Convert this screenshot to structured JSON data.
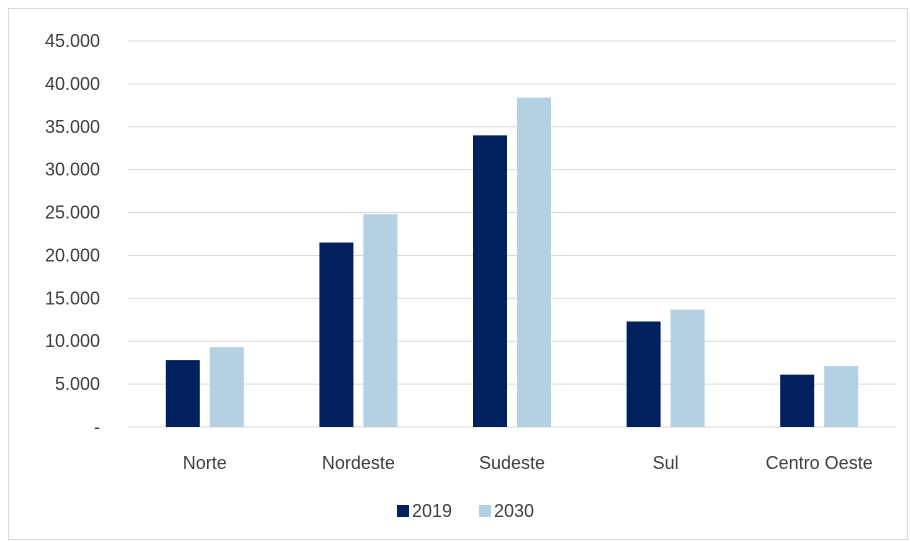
{
  "chart_data": {
    "type": "bar",
    "categories": [
      "Norte",
      "Nordeste",
      "Sudeste",
      "Sul",
      "Centro Oeste"
    ],
    "series": [
      {
        "name": "2019",
        "color": "#002060",
        "values": [
          7800,
          21500,
          34000,
          12300,
          6100
        ]
      },
      {
        "name": "2030",
        "color": "#b4d0e3",
        "values": [
          9300,
          24800,
          38400,
          13700,
          7100
        ]
      }
    ],
    "title": "",
    "xlabel": "",
    "ylabel": "",
    "ylim": [
      0,
      45000
    ],
    "yticks": [
      0,
      5000,
      10000,
      15000,
      20000,
      25000,
      30000,
      35000,
      40000,
      45000
    ],
    "ytick_labels": [
      "-",
      "5.000",
      "10.000",
      "15.000",
      "20.000",
      "25.000",
      "30.000",
      "35.000",
      "40.000",
      "45.000"
    ],
    "grid": true,
    "gridline_color": "#d9d9d9",
    "legend_position": "bottom"
  }
}
